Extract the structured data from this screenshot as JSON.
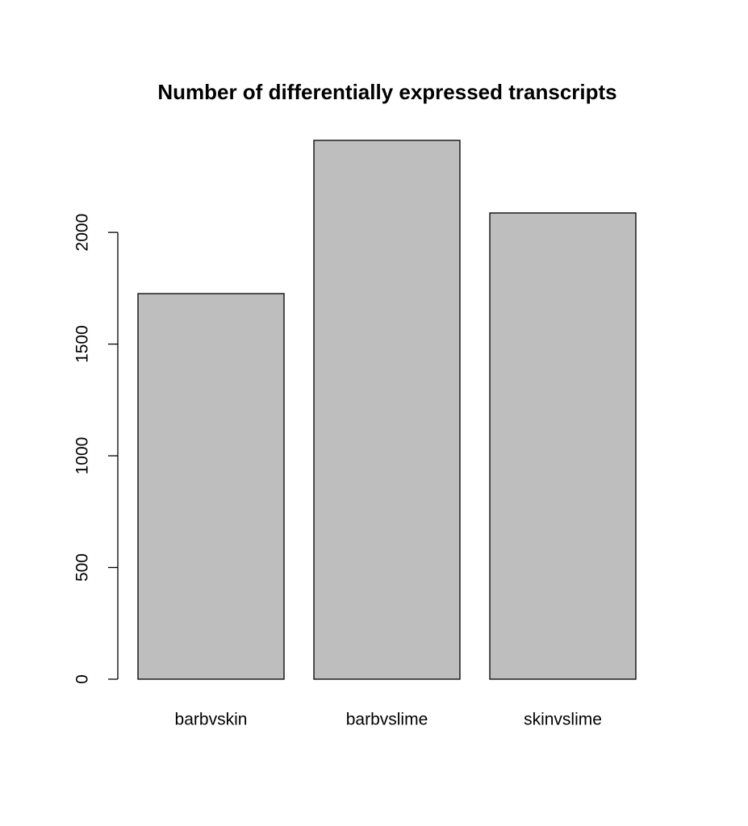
{
  "chart_data": {
    "type": "bar",
    "title": "Number of differentially expressed transcripts",
    "categories": [
      "barbvskin",
      "barbvslime",
      "skinvslime"
    ],
    "values": [
      1726,
      2412,
      2087
    ],
    "color": "#bebebe",
    "ylim": [
      0,
      2412
    ],
    "yticks": [
      0,
      500,
      1000,
      1500,
      2000
    ]
  }
}
